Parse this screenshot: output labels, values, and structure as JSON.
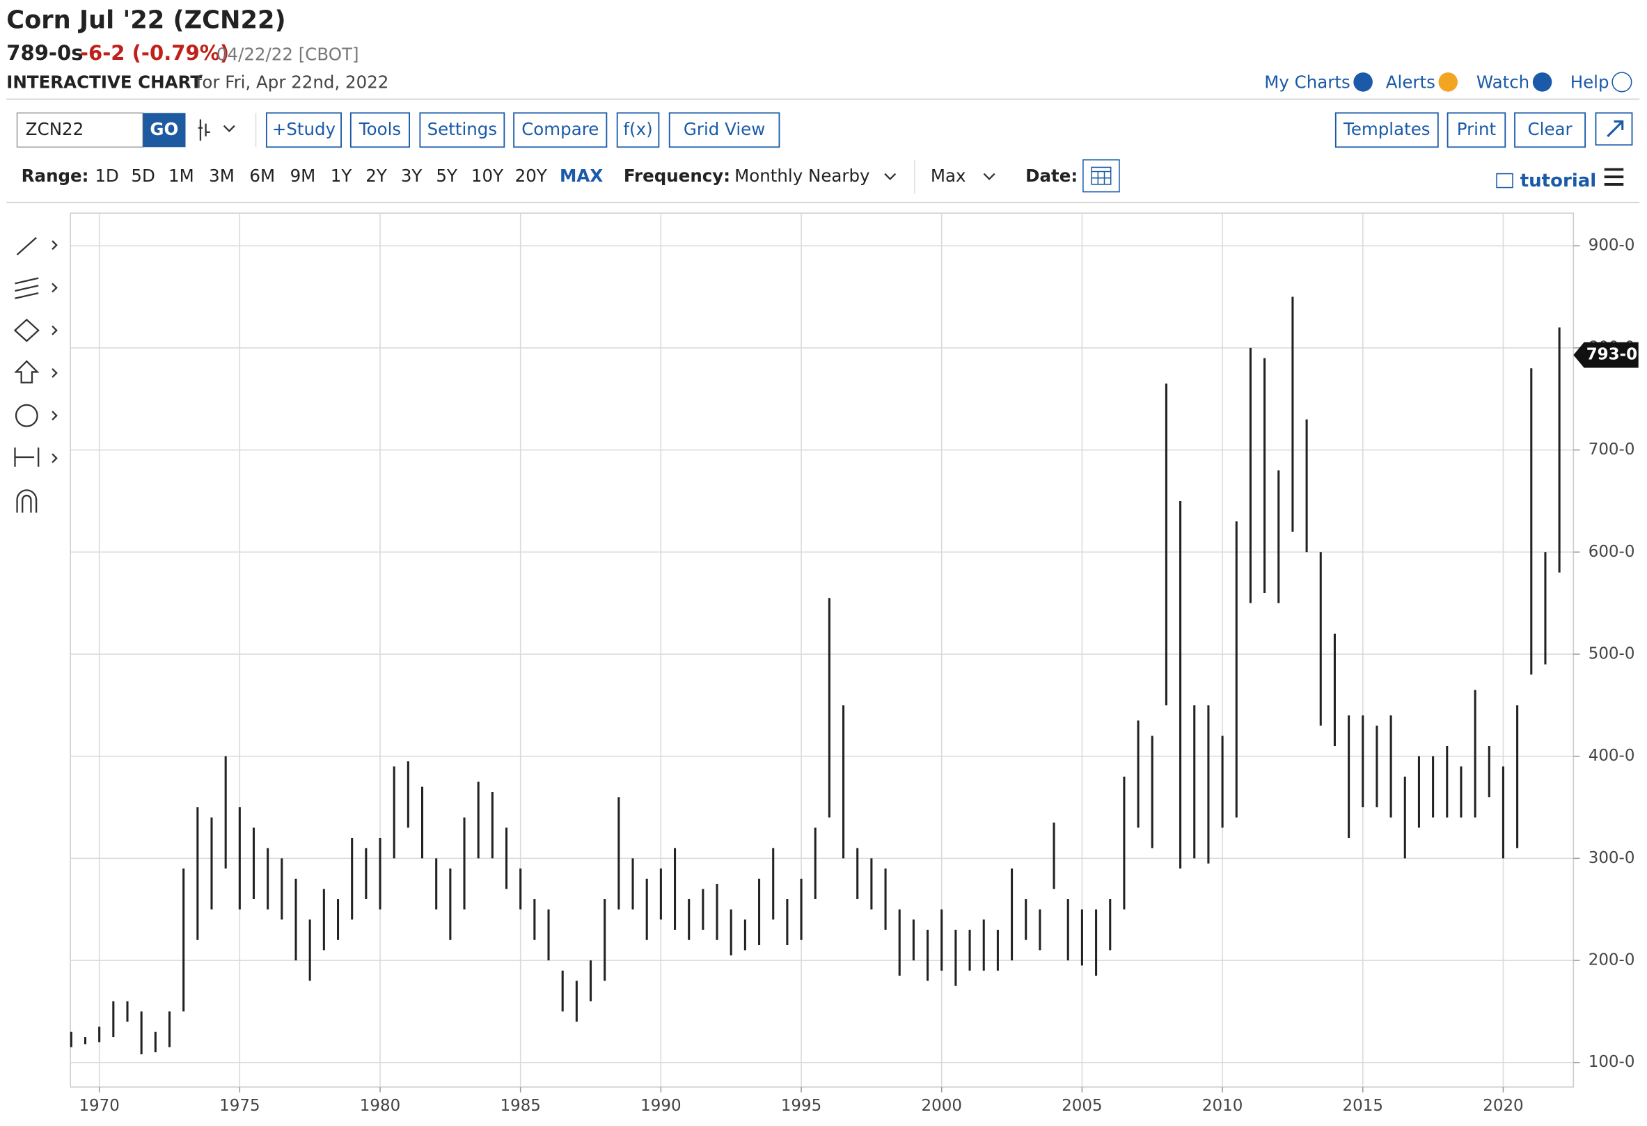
{
  "header": {
    "title": "Corn Jul '22 (ZCN22)",
    "price": "789-0s",
    "change": "-6-2 (-0.79%)",
    "date_exchange": "04/22/22 [CBOT]",
    "chart_label": "INTERACTIVE CHART",
    "chart_date": "for Fri, Apr 22nd, 2022",
    "links": [
      "My Charts",
      "Alerts",
      "Watch",
      "Help"
    ]
  },
  "toolbar": {
    "symbol": "ZCN22",
    "go": "GO",
    "buttons": [
      "+Study",
      "Tools",
      "Settings",
      "Compare",
      "f(x)",
      "Grid View"
    ],
    "right_buttons": [
      "Templates",
      "Print",
      "Clear"
    ],
    "range_label": "Range:",
    "ranges": [
      "1D",
      "5D",
      "1M",
      "3M",
      "6M",
      "9M",
      "1Y",
      "2Y",
      "3Y",
      "5Y",
      "10Y",
      "20Y",
      "MAX"
    ],
    "active_range_index": 12,
    "frequency_label": "Frequency:",
    "frequency": "Monthly Nearby",
    "period": "Max",
    "date_label": "Date:",
    "tutorial": "tutorial"
  },
  "chart_data": {
    "type": "range-bar",
    "color": "#222222",
    "grid": true,
    "xlim": [
      1968.97,
      2022.5
    ],
    "xticks": [
      1970,
      1975,
      1980,
      1985,
      1990,
      1995,
      2000,
      2005,
      2010,
      2015,
      2020
    ],
    "ylim": [
      76,
      932
    ],
    "yticks": [
      {
        "value": 100,
        "label": "100-0"
      },
      {
        "value": 200,
        "label": "200-0"
      },
      {
        "value": 300,
        "label": "300-0"
      },
      {
        "value": 400,
        "label": "400-0"
      },
      {
        "value": 500,
        "label": "500-0"
      },
      {
        "value": 600,
        "label": "600-0"
      },
      {
        "value": 700,
        "label": "700-0"
      },
      {
        "value": 800,
        "label": "800-0"
      },
      {
        "value": 900,
        "label": "900-0"
      }
    ],
    "last_price": {
      "value": 793,
      "label": "793-0"
    },
    "x": [
      1969,
      1969.5,
      1970,
      1970.5,
      1971,
      1971.5,
      1972,
      1972.5,
      1973,
      1973.5,
      1974,
      1974.5,
      1975,
      1975.5,
      1976,
      1976.5,
      1977,
      1977.5,
      1978,
      1978.5,
      1979,
      1979.5,
      1980,
      1980.5,
      1981,
      1981.5,
      1982,
      1982.5,
      1983,
      1983.5,
      1984,
      1984.5,
      1985,
      1985.5,
      1986,
      1986.5,
      1987,
      1987.5,
      1988,
      1988.5,
      1989,
      1989.5,
      1990,
      1990.5,
      1991,
      1991.5,
      1992,
      1992.5,
      1993,
      1993.5,
      1994,
      1994.5,
      1995,
      1995.5,
      1996,
      1996.5,
      1997,
      1997.5,
      1998,
      1998.5,
      1999,
      1999.5,
      2000,
      2000.5,
      2001,
      2001.5,
      2002,
      2002.5,
      2003,
      2003.5,
      2004,
      2004.5,
      2005,
      2005.5,
      2006,
      2006.5,
      2007,
      2007.5,
      2008,
      2008.5,
      2009,
      2009.5,
      2010,
      2010.5,
      2011,
      2011.5,
      2012,
      2012.5,
      2013,
      2013.5,
      2014,
      2014.5,
      2015,
      2015.5,
      2016,
      2016.5,
      2017,
      2017.5,
      2018,
      2018.5,
      2019,
      2019.5,
      2020,
      2020.5,
      2021,
      2021.5,
      2022
    ],
    "high": [
      130,
      125,
      135,
      160,
      160,
      150,
      130,
      150,
      290,
      350,
      340,
      400,
      350,
      330,
      310,
      300,
      280,
      240,
      270,
      260,
      320,
      310,
      320,
      390,
      395,
      370,
      300,
      290,
      340,
      375,
      365,
      330,
      290,
      260,
      250,
      190,
      180,
      200,
      260,
      360,
      300,
      280,
      290,
      310,
      260,
      270,
      275,
      250,
      240,
      280,
      310,
      260,
      280,
      330,
      555,
      450,
      310,
      300,
      290,
      250,
      240,
      230,
      250,
      230,
      230,
      240,
      230,
      290,
      260,
      250,
      335,
      260,
      250,
      250,
      260,
      380,
      435,
      420,
      765,
      650,
      450,
      450,
      420,
      630,
      800,
      790,
      680,
      850,
      730,
      600,
      520,
      440,
      440,
      430,
      440,
      380,
      400,
      400,
      410,
      390,
      465,
      410,
      390,
      450,
      780,
      600,
      820
    ],
    "low": [
      115,
      118,
      120,
      125,
      140,
      108,
      110,
      115,
      150,
      220,
      250,
      290,
      250,
      260,
      250,
      240,
      200,
      180,
      210,
      220,
      240,
      260,
      250,
      300,
      330,
      300,
      250,
      220,
      250,
      300,
      300,
      270,
      250,
      220,
      200,
      150,
      140,
      160,
      180,
      250,
      250,
      220,
      240,
      230,
      220,
      230,
      220,
      205,
      210,
      215,
      240,
      215,
      220,
      260,
      340,
      300,
      260,
      250,
      230,
      185,
      200,
      180,
      190,
      175,
      190,
      190,
      190,
      200,
      220,
      210,
      270,
      200,
      195,
      185,
      210,
      250,
      330,
      310,
      450,
      290,
      300,
      295,
      330,
      340,
      550,
      560,
      550,
      620,
      600,
      430,
      410,
      320,
      350,
      350,
      340,
      300,
      330,
      340,
      340,
      340,
      340,
      360,
      300,
      310,
      480,
      490,
      580
    ]
  }
}
